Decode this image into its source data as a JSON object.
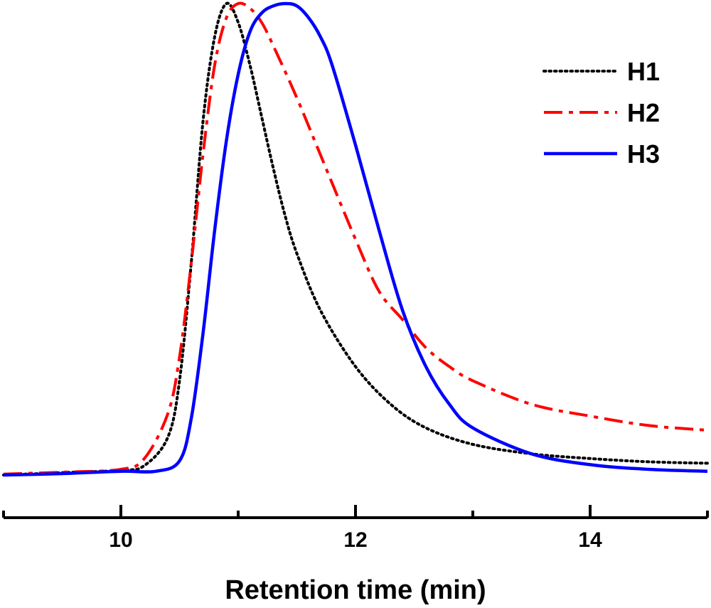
{
  "chart_data": {
    "type": "line",
    "title": "",
    "xlabel": "Retention time (min)",
    "ylabel": "",
    "xlim": [
      9,
      15
    ],
    "ylim": [
      0,
      1
    ],
    "xticks": [
      10,
      12,
      14
    ],
    "xtick_labels": [
      "10",
      "12",
      "14"
    ],
    "grid": false,
    "legend_position": "top-right",
    "series": [
      {
        "name": "H1",
        "color": "#000000",
        "style": "dotted",
        "x": [
          9.0,
          9.5,
          10.0,
          10.2,
          10.4,
          10.5,
          10.6,
          10.7,
          10.8,
          10.9,
          11.0,
          11.1,
          11.2,
          11.3,
          11.4,
          11.5,
          11.7,
          12.0,
          12.3,
          12.6,
          13.0,
          13.5,
          14.0,
          14.5,
          15.0
        ],
        "y": [
          0.0,
          0.005,
          0.01,
          0.02,
          0.08,
          0.2,
          0.45,
          0.75,
          0.93,
          1.0,
          0.96,
          0.87,
          0.76,
          0.65,
          0.55,
          0.47,
          0.35,
          0.23,
          0.15,
          0.1,
          0.065,
          0.045,
          0.035,
          0.028,
          0.025
        ]
      },
      {
        "name": "H2",
        "color": "#ff0000",
        "style": "dash-dot",
        "x": [
          9.0,
          9.5,
          10.0,
          10.2,
          10.4,
          10.5,
          10.6,
          10.7,
          10.8,
          10.9,
          11.0,
          11.1,
          11.2,
          11.3,
          11.5,
          11.7,
          12.0,
          12.2,
          12.4,
          12.6,
          12.8,
          13.0,
          13.5,
          14.0,
          14.5,
          15.0
        ],
        "y": [
          0.002,
          0.006,
          0.012,
          0.035,
          0.13,
          0.25,
          0.45,
          0.68,
          0.87,
          0.97,
          1.0,
          0.99,
          0.96,
          0.91,
          0.8,
          0.68,
          0.5,
          0.39,
          0.33,
          0.27,
          0.23,
          0.2,
          0.15,
          0.125,
          0.105,
          0.095
        ]
      },
      {
        "name": "H3",
        "color": "#0000ff",
        "style": "solid",
        "x": [
          9.0,
          9.5,
          10.0,
          10.3,
          10.5,
          10.6,
          10.7,
          10.8,
          10.9,
          11.0,
          11.1,
          11.2,
          11.3,
          11.4,
          11.5,
          11.6,
          11.7,
          11.8,
          12.0,
          12.2,
          12.4,
          12.6,
          12.8,
          13.0,
          13.5,
          14.0,
          14.5,
          15.0
        ],
        "y": [
          0.0,
          0.003,
          0.008,
          0.008,
          0.03,
          0.12,
          0.3,
          0.52,
          0.71,
          0.85,
          0.94,
          0.98,
          0.995,
          1.0,
          0.995,
          0.97,
          0.93,
          0.87,
          0.7,
          0.52,
          0.35,
          0.23,
          0.15,
          0.1,
          0.045,
          0.022,
          0.012,
          0.008
        ]
      }
    ]
  }
}
